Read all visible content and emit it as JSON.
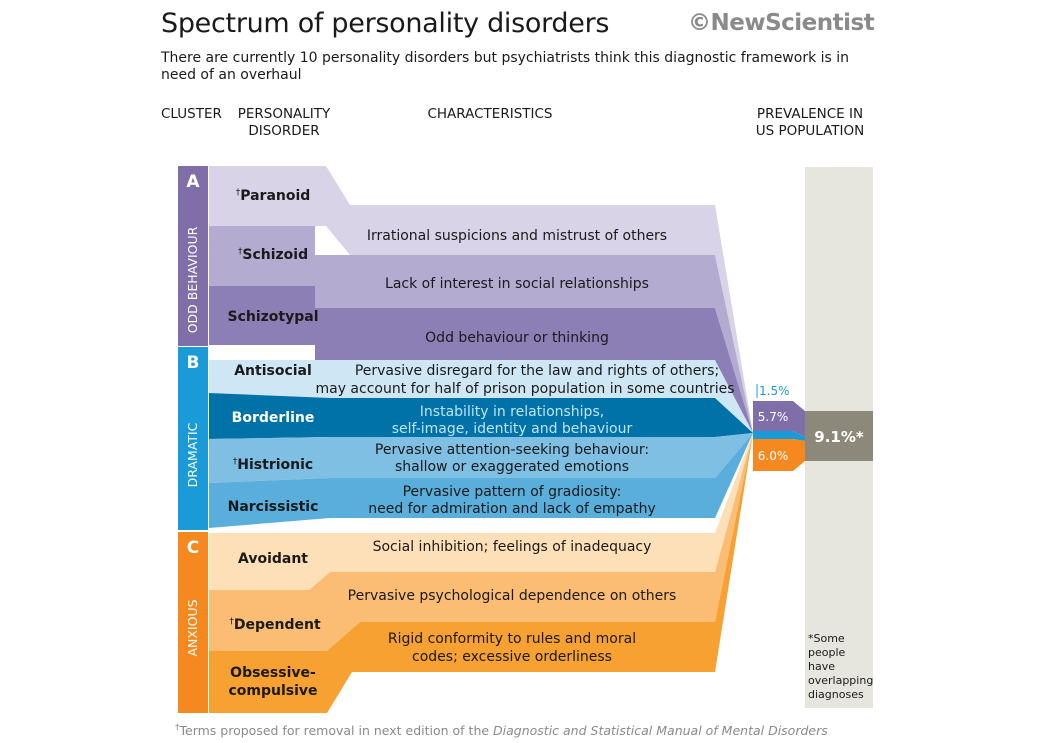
{
  "header": {
    "title": "Spectrum of personality disorders",
    "logo": "©NewScientist",
    "subtitle": "There are currently 10 personality disorders but psychiatrists think this diagnostic framework is in need of an overhaul"
  },
  "columns": {
    "cluster": "CLUSTER",
    "disorder": [
      "PERSONALITY",
      "DISORDER"
    ],
    "characteristics": "CHARACTERISTICS",
    "prevalence": [
      "PREVALENCE IN",
      "US POPULATION"
    ]
  },
  "clusters": [
    {
      "letter": "A",
      "name": "ODD BEHAVIOUR",
      "color": "#7f6ea8",
      "prevalence": "5.7%"
    },
    {
      "letter": "B",
      "name": "DRAMATIC",
      "color": "#1a9bd7",
      "prevalence": "1.5%"
    },
    {
      "letter": "C",
      "name": "ANXIOUS",
      "color": "#f5891f",
      "prevalence": "6.0%"
    }
  ],
  "disorders": [
    {
      "dagger": "†",
      "name": "Paranoid",
      "characteristic": [
        "Irrational suspicions and mistrust of others"
      ]
    },
    {
      "dagger": "†",
      "name": "Schizoid",
      "characteristic": [
        "Lack of interest in social relationships"
      ]
    },
    {
      "dagger": "",
      "name": "Schizotypal",
      "characteristic": [
        "Odd behaviour or thinking"
      ]
    },
    {
      "dagger": "",
      "name": "Antisocial",
      "characteristic": [
        "Pervasive disregard for the law and rights of others;",
        "may account for half of prison population in some countries"
      ]
    },
    {
      "dagger": "",
      "name": "Borderline",
      "characteristic": [
        "Instability in relationships,",
        "self-image, identity and behaviour"
      ]
    },
    {
      "dagger": "†",
      "name": "Histrionic",
      "characteristic": [
        "Pervasive attention-seeking behaviour:",
        "shallow or exaggerated emotions"
      ]
    },
    {
      "dagger": "",
      "name": "Narcissistic",
      "characteristic": [
        "Pervasive pattern of gradiosity:",
        "need for admiration and lack of empathy"
      ]
    },
    {
      "dagger": "",
      "name": "Avoidant",
      "characteristic": [
        "Social inhibition; feelings of inadequacy"
      ]
    },
    {
      "dagger": "†",
      "name": "Dependent",
      "characteristic": [
        "Pervasive psychological dependence on others"
      ]
    },
    {
      "dagger": "",
      "name": [
        "Obsessive-",
        "compulsive"
      ],
      "characteristic": [
        "Rigid conformity to rules and moral",
        "codes; excessive orderliness"
      ]
    }
  ],
  "total": {
    "value": "9.1%*",
    "note": [
      "*Some",
      "people",
      "have",
      "overlapping",
      "diagnoses"
    ]
  },
  "footnote": {
    "dagger": "†",
    "text": "Terms proposed for removal in next edition of the ",
    "italic": "Diagnostic and Statistical Manual of Mental Disorders"
  }
}
